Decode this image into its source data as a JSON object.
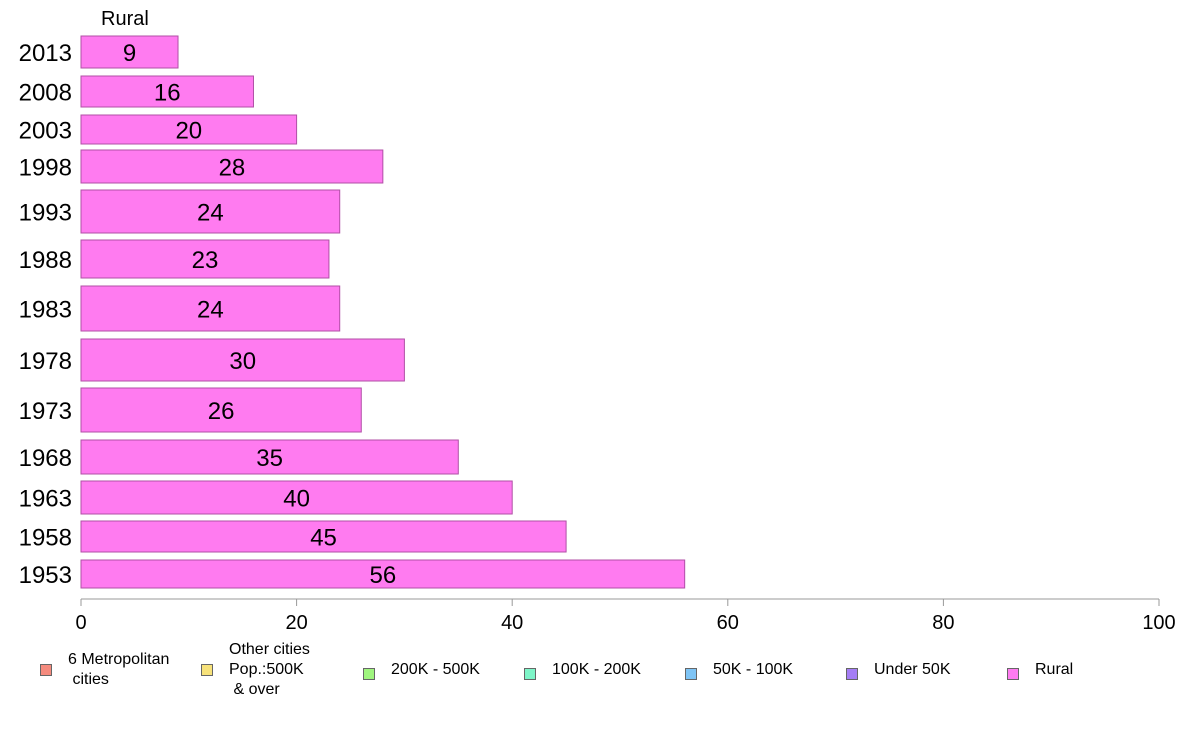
{
  "chart_data": {
    "type": "bar",
    "orientation": "horizontal",
    "panel_title": "Rural",
    "categories": [
      "2013",
      "2008",
      "2003",
      "1998",
      "1993",
      "1988",
      "1983",
      "1978",
      "1973",
      "1968",
      "1963",
      "1958",
      "1953"
    ],
    "series": [
      {
        "name": "Rural",
        "values": [
          9,
          16,
          20,
          28,
          24,
          23,
          24,
          30,
          26,
          35,
          40,
          45,
          56
        ]
      }
    ],
    "xlim": [
      0,
      100
    ],
    "xticks": [
      0,
      20,
      40,
      60,
      80,
      100
    ],
    "grid": false,
    "legend_position": "bottom",
    "legend": [
      {
        "label": "6 Metropolitan\n cities",
        "color": "#f58b7e"
      },
      {
        "label": "Other cities\nPop.:500K\n & over",
        "color": "#f7e27a"
      },
      {
        "label": "200K - 500K",
        "color": "#9ff57e"
      },
      {
        "label": "100K - 200K",
        "color": "#7ef5c8"
      },
      {
        "label": "50K - 100K",
        "color": "#7ec4f5"
      },
      {
        "label": "Under 50K",
        "color": "#a57ef5"
      },
      {
        "label": "Rural",
        "color": "#ff7bf0"
      }
    ],
    "bar_color": "#ff7bf0",
    "bar_stroke": "#b04fa6"
  }
}
